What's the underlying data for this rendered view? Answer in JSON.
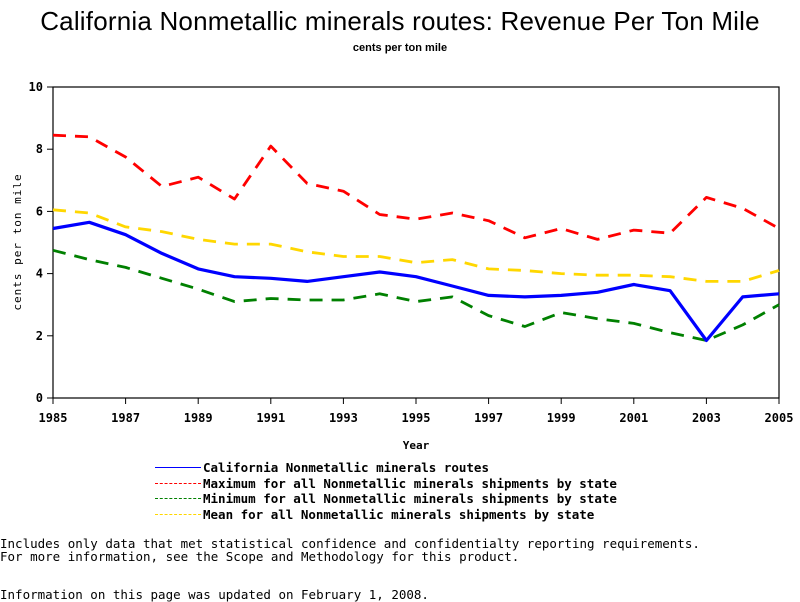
{
  "chart_data": {
    "type": "line",
    "title": "California Nonmetallic minerals routes: Revenue Per Ton Mile",
    "subtitle": "cents per ton mile",
    "xlabel": "Year",
    "ylabel": "cents per ton mile",
    "xlim": [
      1985,
      2005
    ],
    "ylim": [
      0,
      10
    ],
    "x_ticks": [
      1985,
      1987,
      1989,
      1991,
      1993,
      1995,
      1997,
      1999,
      2001,
      2003,
      2005
    ],
    "y_ticks": [
      0,
      2,
      4,
      6,
      8,
      10
    ],
    "grid": false,
    "legend_position": "bottom",
    "x": [
      1985,
      1986,
      1987,
      1988,
      1989,
      1990,
      1991,
      1992,
      1993,
      1994,
      1995,
      1996,
      1997,
      1998,
      1999,
      2000,
      2001,
      2002,
      2003,
      2004,
      2005
    ],
    "series": [
      {
        "name": "California Nonmetallic minerals routes",
        "color": "#0000ff",
        "style": "solid",
        "values": [
          5.45,
          5.65,
          5.25,
          4.65,
          4.15,
          3.9,
          3.85,
          3.75,
          3.9,
          4.05,
          3.9,
          3.6,
          3.3,
          3.25,
          3.3,
          3.4,
          3.65,
          3.45,
          1.85,
          3.25,
          3.35
        ]
      },
      {
        "name": "Maximum for all Nonmetallic minerals shipments by state",
        "color": "#ff0000",
        "style": "dashed",
        "values": [
          8.45,
          8.4,
          7.75,
          6.8,
          7.1,
          6.4,
          8.1,
          6.9,
          6.65,
          5.9,
          5.75,
          5.95,
          5.7,
          5.15,
          5.45,
          5.1,
          5.4,
          5.3,
          6.45,
          6.1,
          5.45
        ]
      },
      {
        "name": "Minimum for all Nonmetallic minerals shipments by state",
        "color": "#008000",
        "style": "dashed",
        "values": [
          4.75,
          4.45,
          4.2,
          3.85,
          3.5,
          3.1,
          3.2,
          3.15,
          3.15,
          3.35,
          3.1,
          3.25,
          2.65,
          2.3,
          2.75,
          2.55,
          2.4,
          2.1,
          1.85,
          2.35,
          3.0
        ]
      },
      {
        "name": "Mean for all Nonmetallic minerals shipments by state",
        "color": "#ffd700",
        "style": "dashed",
        "values": [
          6.05,
          5.95,
          5.5,
          5.35,
          5.1,
          4.95,
          4.95,
          4.7,
          4.55,
          4.55,
          4.35,
          4.45,
          4.15,
          4.1,
          4.0,
          3.95,
          3.95,
          3.9,
          3.75,
          3.75,
          4.1
        ]
      }
    ]
  },
  "footnotes": {
    "line1": "Includes only data that met statistical confidence and confidentialty reporting requirements.",
    "line2": "For more information, see the Scope and Methodology for this product.",
    "updated": "Information on this page was updated on February 1, 2008."
  }
}
